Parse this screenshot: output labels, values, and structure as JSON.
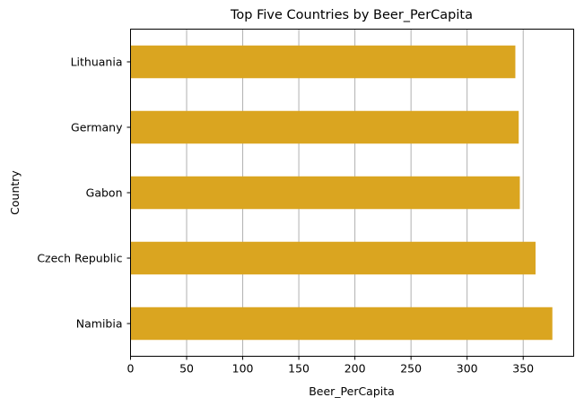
{
  "chart_data": {
    "type": "bar",
    "orientation": "horizontal",
    "title": "Top Five Countries by Beer_PerCapita",
    "xlabel": "Beer_PerCapita",
    "ylabel": "Country",
    "categories": [
      "Namibia",
      "Czech Republic",
      "Gabon",
      "Germany",
      "Lithuania"
    ],
    "values": [
      376,
      361,
      347,
      346,
      343
    ],
    "xlim": [
      0,
      395
    ],
    "xticks": [
      0,
      50,
      100,
      150,
      200,
      250,
      300,
      350
    ],
    "grid": "x-major",
    "bar_color": "#DAA520",
    "grid_color": "#b0b0b0"
  }
}
